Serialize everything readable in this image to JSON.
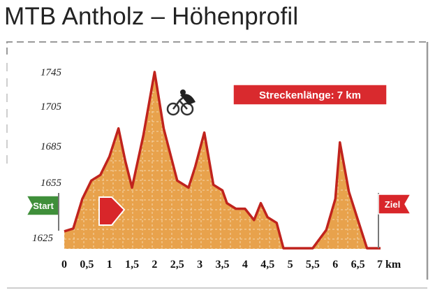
{
  "title": "MTB Antholz – Höhenprofil",
  "colors": {
    "fill": "#e8a24c",
    "outline": "#c0231d",
    "grid": "#f4d7ad",
    "start_flag": "#3f8f3a",
    "goal_flag": "#d8262a",
    "badge": "#d92a2e",
    "arrow": "#d8262a",
    "frame": "#9a9a9a"
  },
  "icons": {
    "cyclist": "cyclist-icon",
    "arrow": "direction-arrow-icon",
    "start": "start-flag-icon",
    "goal": "goal-flag-icon"
  },
  "start_label": "Start",
  "goal_label": "Ziel",
  "badge": {
    "label": "Streckenlänge: 7 km"
  },
  "chart_data": {
    "type": "area",
    "title": "MTB Antholz – Höhenprofil",
    "xlabel": "km",
    "ylabel": "",
    "x_unit": "km",
    "xlim": [
      0,
      7
    ],
    "ylim": [
      1625,
      1745
    ],
    "grid": true,
    "legend": "none",
    "x_ticks": [
      "0",
      "0,5",
      "1",
      "1,5",
      "2",
      "2,5",
      "3",
      "3,5",
      "4",
      "4,5",
      "5",
      "5,5",
      "6",
      "6,5",
      "7 km"
    ],
    "x_tick_values": [
      0,
      0.5,
      1,
      1.5,
      2,
      2.5,
      3,
      3.5,
      4,
      4.5,
      5,
      5.5,
      6,
      6.5,
      7
    ],
    "y_ticks": [
      "1745",
      "1705",
      "1685",
      "1655",
      "1625"
    ],
    "series": [
      {
        "x": [
          0,
          0.2,
          0.4,
          0.6,
          0.8,
          1.0,
          1.2,
          1.35,
          1.5,
          1.75,
          2.0,
          2.2,
          2.5,
          2.75,
          2.9,
          3.1,
          3.3,
          3.5,
          3.6,
          3.8,
          4.0,
          4.2,
          4.35,
          4.5,
          4.7,
          4.85,
          5.0,
          5.5,
          5.8,
          6.0,
          6.1,
          6.3,
          6.5,
          6.7,
          7.0
        ],
        "y": [
          1632,
          1634,
          1655,
          1668,
          1672,
          1685,
          1705,
          1682,
          1663,
          1700,
          1745,
          1705,
          1668,
          1663,
          1678,
          1702,
          1665,
          1661,
          1652,
          1648,
          1648,
          1640,
          1652,
          1642,
          1638,
          1620,
          1620,
          1620,
          1633,
          1655,
          1695,
          1660,
          1640,
          1620,
          1620
        ]
      }
    ]
  }
}
